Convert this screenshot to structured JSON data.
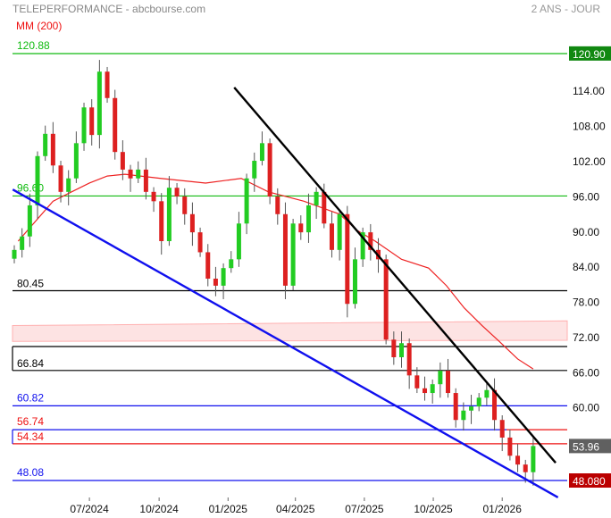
{
  "header": {
    "title": "TELEPERFORMANCE - abcbourse.com",
    "period": "2 ANS - JOUR",
    "indicator": "MM (200)"
  },
  "colors": {
    "up": "#22cc22",
    "down": "#dd2020",
    "wick": "#555555",
    "ma": "#ee2222",
    "support": "#1010ee",
    "resistance": "#000000",
    "band": "#ffb0b0",
    "green_level": "#11bb11"
  },
  "chart_data": {
    "type": "candlestick",
    "title": "TELEPERFORMANCE",
    "ylim": [
      45,
      123
    ],
    "y_ticks": [
      "114.00",
      "108.00",
      "102.00",
      "96.00",
      "90.00",
      "84.00",
      "78.00",
      "72.00",
      "66.00",
      "60.00"
    ],
    "y_tick_values": [
      114,
      108,
      102,
      96,
      90,
      84,
      78,
      72,
      66,
      60
    ],
    "x_ticks": [
      {
        "label": "07/2024",
        "bar": 9.7
      },
      {
        "label": "10/2024",
        "bar": 18.7
      },
      {
        "label": "01/2025",
        "bar": 27.6
      },
      {
        "label": "04/2025",
        "bar": 36.3
      },
      {
        "label": "07/2025",
        "bar": 45.2
      },
      {
        "label": "10/2025",
        "bar": 54.1
      },
      {
        "label": "01/2026",
        "bar": 63.0
      }
    ],
    "closes": [
      87.4,
      89.7,
      95.0,
      103.4,
      107.2,
      101.8,
      97.3,
      99.6,
      105.6,
      111.7,
      107.0,
      117.8,
      113.3,
      104.1,
      101.1,
      99.6,
      101.1,
      97.3,
      95.7,
      88.9,
      98.0,
      96.5,
      93.5,
      90.4,
      87.0,
      82.5,
      81.3,
      84.3,
      85.8,
      91.9,
      99.6,
      102.6,
      105.6,
      96.5,
      93.5,
      81.3,
      91.9,
      90.4,
      95.0,
      97.3,
      91.9,
      87.4,
      93.5,
      78.2,
      85.8,
      90.4,
      87.4,
      85.8,
      72.1,
      69.1,
      71.5,
      66.0,
      63.8,
      63.0,
      64.5,
      66.8,
      63.0,
      58.4,
      60.0,
      60.7,
      62.2,
      63.5,
      58.4,
      55.4,
      52.3,
      50.8,
      49.5,
      53.96
    ],
    "ma200": {
      "name": "MM (200)",
      "points": [
        [
          0.5,
          88.9
        ],
        [
          5,
          95.7
        ],
        [
          7.4,
          97.3
        ],
        [
          9.7,
          98.8
        ],
        [
          12,
          100.0
        ],
        [
          14.3,
          100.3
        ],
        [
          18.9,
          99.6
        ],
        [
          24.7,
          98.8
        ],
        [
          29.3,
          99.6
        ],
        [
          32.8,
          97.3
        ],
        [
          37.4,
          95.7
        ],
        [
          42,
          93.5
        ],
        [
          44.3,
          90.7
        ],
        [
          46.6,
          88.9
        ],
        [
          50,
          85.8
        ],
        [
          53.5,
          84.3
        ],
        [
          55.8,
          81.3
        ],
        [
          58.1,
          77.5
        ],
        [
          60.4,
          74.5
        ],
        [
          62.7,
          71.7
        ],
        [
          65,
          68.8
        ],
        [
          67,
          67.1
        ]
      ]
    },
    "levels": [
      {
        "value": 120.88,
        "label": "120.88",
        "color": "#11bb11"
      },
      {
        "value": 96.6,
        "label": "96.60",
        "color": "#11bb11"
      },
      {
        "value": 80.45,
        "label": "80.45",
        "color": "#000000"
      },
      {
        "value": 70.93,
        "label": "",
        "color": "#000000"
      },
      {
        "value": 66.84,
        "label": "66.84",
        "color": "#000000"
      },
      {
        "value": 60.82,
        "label": "60.82",
        "color": "#1010ee"
      },
      {
        "value": 56.74,
        "label": "56.74",
        "color": "#1010ee",
        "label_color": "#ee1111"
      },
      {
        "value": 54.34,
        "label": "54.34",
        "color": "#ee1111"
      },
      {
        "value": 48.08,
        "label": "48.08",
        "color": "#1010ee"
      }
    ],
    "trendlines": [
      {
        "name": "resistance",
        "from": [
          28.4,
          115.1
        ],
        "to": [
          69.9,
          51.1
        ],
        "color": "#000000"
      },
      {
        "name": "support",
        "from": [
          -0.2,
          97.7
        ],
        "to": [
          70.2,
          45.2
        ],
        "color": "#1010ee"
      }
    ],
    "band": {
      "left": [
        71.8,
        74.5
      ],
      "right": [
        72.0,
        75.3
      ]
    },
    "price_tags": [
      {
        "value": 120.9,
        "label": "120.90",
        "bg": "#118811"
      },
      {
        "value": 53.96,
        "label": "53.96",
        "bg": "#606060"
      },
      {
        "value": 48.08,
        "label": "48.080",
        "bg": "#bb0000"
      }
    ]
  }
}
